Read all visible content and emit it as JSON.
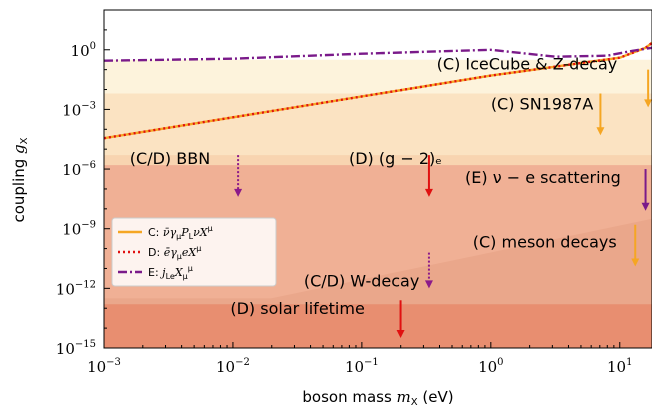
{
  "chart_data": {
    "type": "line",
    "title": "",
    "xlabel": "boson mass m_X (eV)",
    "ylabel": "coupling g_X",
    "xscale": "log",
    "yscale": "log",
    "xlim_exp": [
      -3,
      1.25
    ],
    "ylim_exp": [
      -15,
      2
    ],
    "x_ticks": [
      {
        "exp": -3,
        "label": "10",
        "sup": "−3"
      },
      {
        "exp": -2,
        "label": "10",
        "sup": "−2"
      },
      {
        "exp": -1,
        "label": "10",
        "sup": "−1"
      },
      {
        "exp": 0,
        "label": "10",
        "sup": "0"
      },
      {
        "exp": 1,
        "label": "10",
        "sup": "1"
      }
    ],
    "y_ticks": [
      {
        "exp": 0,
        "label": "10",
        "sup": "0"
      },
      {
        "exp": -3,
        "label": "10",
        "sup": "−3"
      },
      {
        "exp": -6,
        "label": "10",
        "sup": "−6"
      },
      {
        "exp": -9,
        "label": "10",
        "sup": "−9"
      },
      {
        "exp": -12,
        "label": "10",
        "sup": "−12"
      },
      {
        "exp": -15,
        "label": "10",
        "sup": "−15"
      }
    ],
    "regions": [
      {
        "name": "IceCube-Z-decay",
        "color": "#fdf3dc",
        "poly": [
          [
            -3,
            -0.5
          ],
          [
            1.25,
            -0.5
          ],
          [
            1.25,
            -15
          ],
          [
            -3,
            -15
          ]
        ]
      },
      {
        "name": "SN1987A",
        "color": "#fbe3c2",
        "poly": [
          [
            -3,
            -2.2
          ],
          [
            1.25,
            -2.2
          ],
          [
            1.25,
            -15
          ],
          [
            -3,
            -15
          ]
        ]
      },
      {
        "name": "BBN",
        "color": "#f8d4b0",
        "poly": [
          [
            -3,
            -5.3
          ],
          [
            1.25,
            -5.3
          ],
          [
            1.25,
            -15
          ],
          [
            -3,
            -15
          ]
        ]
      },
      {
        "name": "nu-e-scattering",
        "color": "#f0b095",
        "poly": [
          [
            -3,
            -5.8
          ],
          [
            1.25,
            -5.8
          ],
          [
            1.25,
            -15
          ],
          [
            -3,
            -15
          ]
        ]
      },
      {
        "name": "meson-decays",
        "color": "#eaa78b",
        "poly": [
          [
            -1.7,
            -12.5
          ],
          [
            1.25,
            -8.5
          ],
          [
            1.25,
            -15
          ],
          [
            -3,
            -15
          ],
          [
            -3,
            -12.5
          ]
        ]
      },
      {
        "name": "solar-lifetime",
        "color": "#e88e70",
        "poly": [
          [
            -3,
            -12.8
          ],
          [
            1.25,
            -12.8
          ],
          [
            1.25,
            -15
          ],
          [
            -3,
            -15
          ]
        ]
      }
    ],
    "series": [
      {
        "name": "C: ν̄γ_μ P_L νX^μ",
        "key": "C",
        "color": "#f5a623",
        "dash": "",
        "width": 2.4,
        "points": [
          [
            -3,
            -4.45
          ],
          [
            0,
            -1.3
          ],
          [
            0.5,
            -0.85
          ],
          [
            0.75,
            -0.62
          ],
          [
            1.0,
            -0.4
          ],
          [
            1.2,
            0.1
          ],
          [
            1.25,
            0.35
          ]
        ]
      },
      {
        "name": "D: ēγ_μ eX^μ",
        "key": "D",
        "color": "#e01010",
        "dash": "2,3",
        "width": 2.4,
        "points": [
          [
            -3,
            -4.45
          ],
          [
            0,
            -1.3
          ],
          [
            0.5,
            -0.85
          ],
          [
            0.75,
            -0.62
          ],
          [
            1.0,
            -0.4
          ],
          [
            1.2,
            0.1
          ],
          [
            1.25,
            0.35
          ]
        ]
      },
      {
        "name": "E: j^μ_Le X_μ",
        "key": "E",
        "color": "#7a1a8a",
        "dash": "9,3,2,3",
        "width": 2.4,
        "points": [
          [
            -3,
            -0.55
          ],
          [
            -2,
            -0.45
          ],
          [
            -1,
            -0.2
          ],
          [
            0,
            0
          ],
          [
            0.5,
            -0.35
          ],
          [
            0.9,
            -0.3
          ],
          [
            1.1,
            -0.05
          ],
          [
            1.25,
            0.1
          ]
        ]
      }
    ],
    "legend": {
      "placement": "left",
      "entries": [
        {
          "key": "C",
          "prefix": "C: ",
          "math": "ν̄γ",
          "sub1": "μ",
          "mid": "P",
          "sub2": "L",
          "tail": "νX",
          "sup": "μ"
        },
        {
          "key": "D",
          "prefix": "D: ",
          "math": "ēγ",
          "sub1": "μ",
          "mid": "eX",
          "sub2": "",
          "tail": "",
          "sup": "μ"
        },
        {
          "key": "E",
          "prefix": "E: ",
          "math": "j",
          "sub1": "Le",
          "mid": "X",
          "sub2": "μ",
          "tail": "",
          "sup": "μ"
        }
      ]
    },
    "annotations": [
      {
        "text": "(C) IceCube & Z-decay",
        "x": -0.42,
        "y": -1.0,
        "anchor": "start",
        "arrow": {
          "x": 1.22,
          "y_from": -1.0,
          "y_to": -2.9,
          "color": "#f5a623",
          "dash": ""
        }
      },
      {
        "text": "(C) SN1987A",
        "x": 0.0,
        "y": -3.0,
        "anchor": "start",
        "arrow": {
          "x": 0.85,
          "y_from": -2.2,
          "y_to": -4.3,
          "color": "#f5a623",
          "dash": ""
        }
      },
      {
        "text": "(C/D) BBN",
        "x": -2.8,
        "y": -5.75,
        "anchor": "start",
        "arrow": {
          "x": -1.96,
          "y_from": -5.3,
          "y_to": -7.4,
          "color": "#8b1a8a",
          "dash": "2,2"
        }
      },
      {
        "text": "(D) (g − 2)ₑ",
        "x": -1.1,
        "y": -5.75,
        "anchor": "start",
        "arrow": {
          "x": -0.48,
          "y_from": -5.3,
          "y_to": -7.4,
          "color": "#e01010",
          "dash": ""
        }
      },
      {
        "text": "(E) ν − e scattering",
        "x": -0.2,
        "y": -6.7,
        "anchor": "start",
        "arrow": {
          "x": 1.2,
          "y_from": -6.0,
          "y_to": -8.1,
          "color": "#7a1a8a",
          "dash": ""
        }
      },
      {
        "text": "(C) meson decays",
        "x": -0.14,
        "y": -9.95,
        "anchor": "start",
        "arrow": {
          "x": 1.12,
          "y_from": -8.8,
          "y_to": -10.9,
          "color": "#f5a623",
          "dash": ""
        }
      },
      {
        "text": "(C/D) W-decay",
        "x": -1.45,
        "y": -11.9,
        "anchor": "start",
        "arrow": {
          "x": -0.48,
          "y_from": -10.2,
          "y_to": -12.0,
          "color": "#8b1a8a",
          "dash": "2,2"
        }
      },
      {
        "text": "(D) solar lifetime",
        "x": -2.02,
        "y": -13.3,
        "anchor": "start",
        "arrow": {
          "x": -0.7,
          "y_from": -12.6,
          "y_to": -14.5,
          "color": "#e01010",
          "dash": ""
        }
      }
    ]
  }
}
